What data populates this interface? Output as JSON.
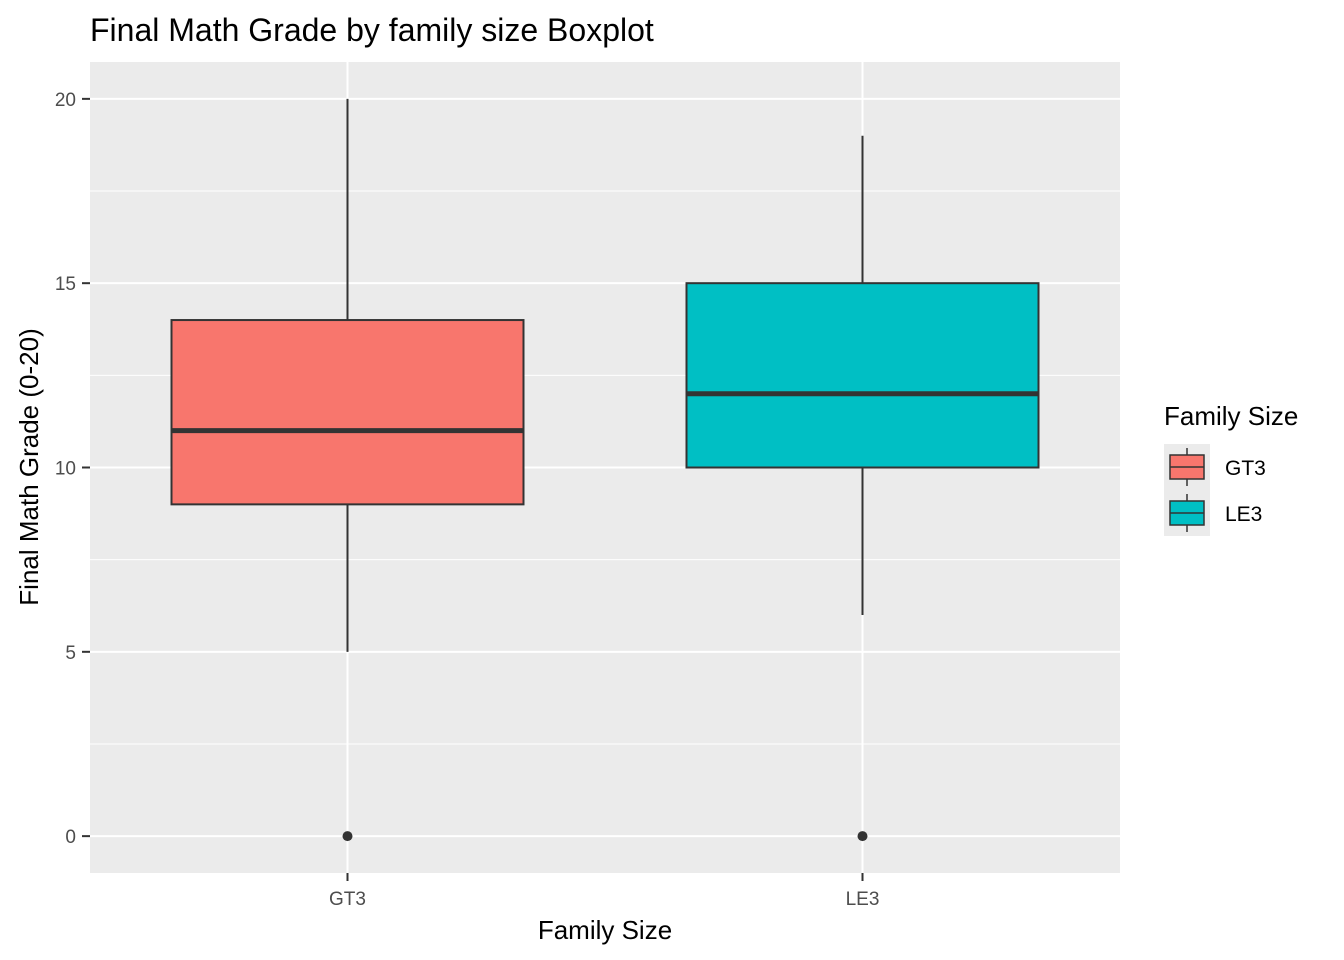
{
  "chart_data": {
    "type": "boxplot",
    "title": "Final Math Grade by family size Boxplot",
    "xlabel": "Family Size",
    "ylabel": "Final Math Grade (0-20)",
    "categories": [
      "GT3",
      "LE3"
    ],
    "ylim": [
      -1,
      21
    ],
    "yticks": [
      0,
      5,
      10,
      15,
      20
    ],
    "grid": true,
    "legend": {
      "title": "Family Size",
      "position": "right",
      "entries": [
        "GT3",
        "LE3"
      ]
    },
    "series": [
      {
        "name": "GT3",
        "color": "#F8766D",
        "min": 5,
        "q1": 9,
        "median": 11,
        "q3": 14,
        "max": 20,
        "outliers": [
          0
        ]
      },
      {
        "name": "LE3",
        "color": "#00BFC4",
        "min": 6,
        "q1": 10,
        "median": 12,
        "q3": 15,
        "max": 19,
        "outliers": [
          0
        ]
      }
    ],
    "colors": {
      "panel": "#EBEBEB",
      "grid": "#FFFFFF",
      "box_outline": "#333333",
      "tick_text": "#4D4D4D"
    }
  }
}
